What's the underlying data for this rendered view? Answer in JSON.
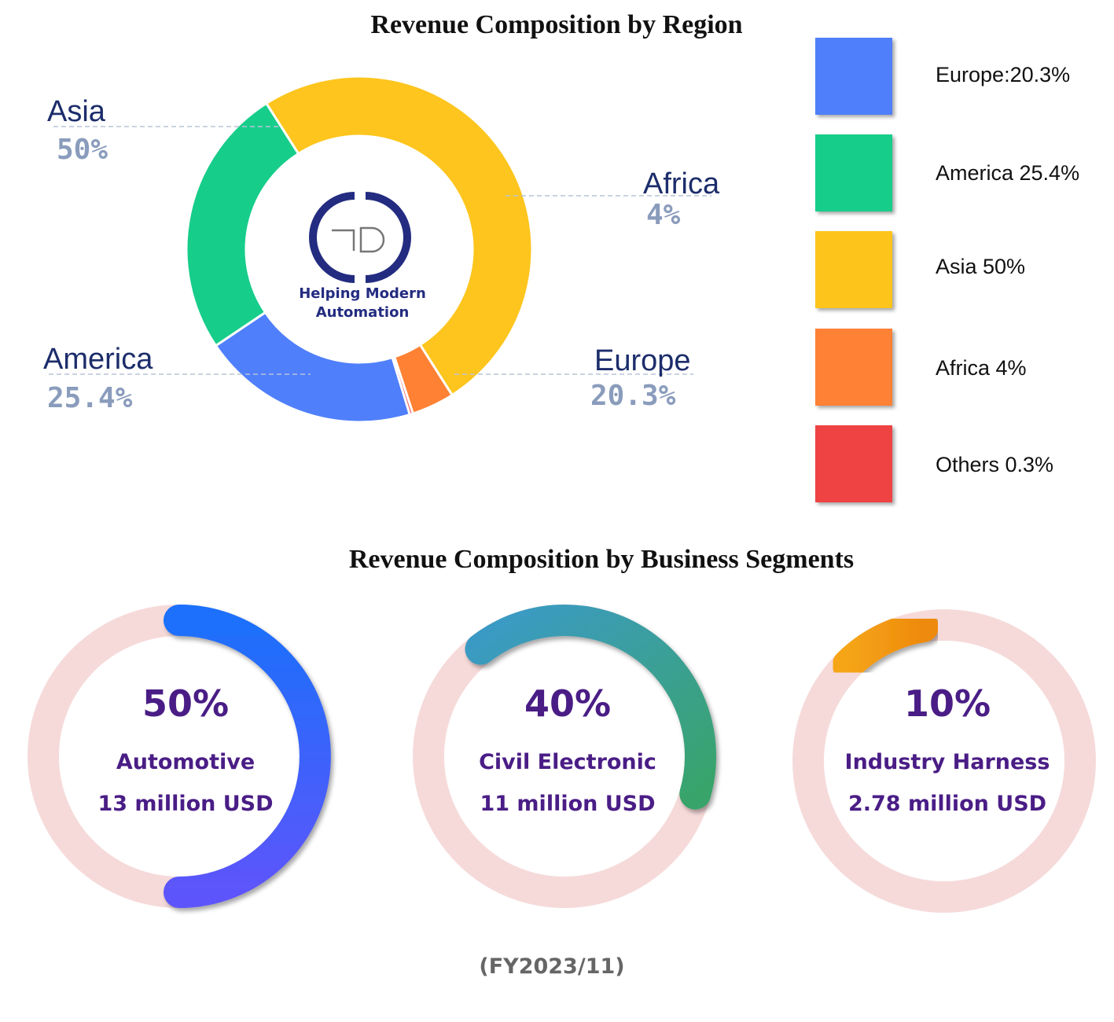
{
  "region_section": {
    "title": "Revenue Composition by Region",
    "logo_text": "TD",
    "tagline_line1": "Helping Modern",
    "tagline_line2": "Automation",
    "callouts": [
      {
        "name": "Asia",
        "pct": "50%"
      },
      {
        "name": "Africa",
        "pct": "4%"
      },
      {
        "name": "America",
        "pct": "25.4%"
      },
      {
        "name": "Europe",
        "pct": "20.3%"
      }
    ],
    "legend": [
      {
        "label": "Europe:20.3%",
        "color": "#4f7ffb"
      },
      {
        "label": "America 25.4%",
        "color": "#17cd8a"
      },
      {
        "label": "Asia 50%",
        "color": "#fdc51d"
      },
      {
        "label": "Africa 4%",
        "color": "#fe8134"
      },
      {
        "label": "Others 0.3%",
        "color": "#ef4343"
      }
    ]
  },
  "segments_section": {
    "title": "Revenue Composition by Business Segments",
    "items": [
      {
        "pct": "50%",
        "name": "Automotive",
        "amount": "13 million USD"
      },
      {
        "pct": "40%",
        "name": "Civil Electronic",
        "amount": "11 million USD"
      },
      {
        "pct": "10%",
        "name": "Industry Harness",
        "amount": "2.78 million USD"
      }
    ]
  },
  "footer_note": "(FY2023/11)",
  "chart_data": [
    {
      "type": "pie",
      "title": "Revenue Composition by Region",
      "categories": [
        "Europe",
        "America",
        "Asia",
        "Africa",
        "Others"
      ],
      "values": [
        20.3,
        25.4,
        50,
        4,
        0.3
      ],
      "colors": [
        "#4f7ffb",
        "#17cd8a",
        "#fdc51d",
        "#fe8134",
        "#ef4343"
      ],
      "legend_position": "right"
    },
    {
      "type": "pie",
      "title": "Revenue Composition by Business Segments",
      "categories": [
        "Automotive",
        "Civil Electronic",
        "Industry Harness"
      ],
      "values": [
        50,
        40,
        10
      ],
      "amounts_million_usd": [
        13,
        11,
        2.78
      ],
      "colors": [
        "#5a5cfb",
        "#35a29a",
        "#f29312"
      ],
      "track_color": "#f6dada"
    }
  ]
}
